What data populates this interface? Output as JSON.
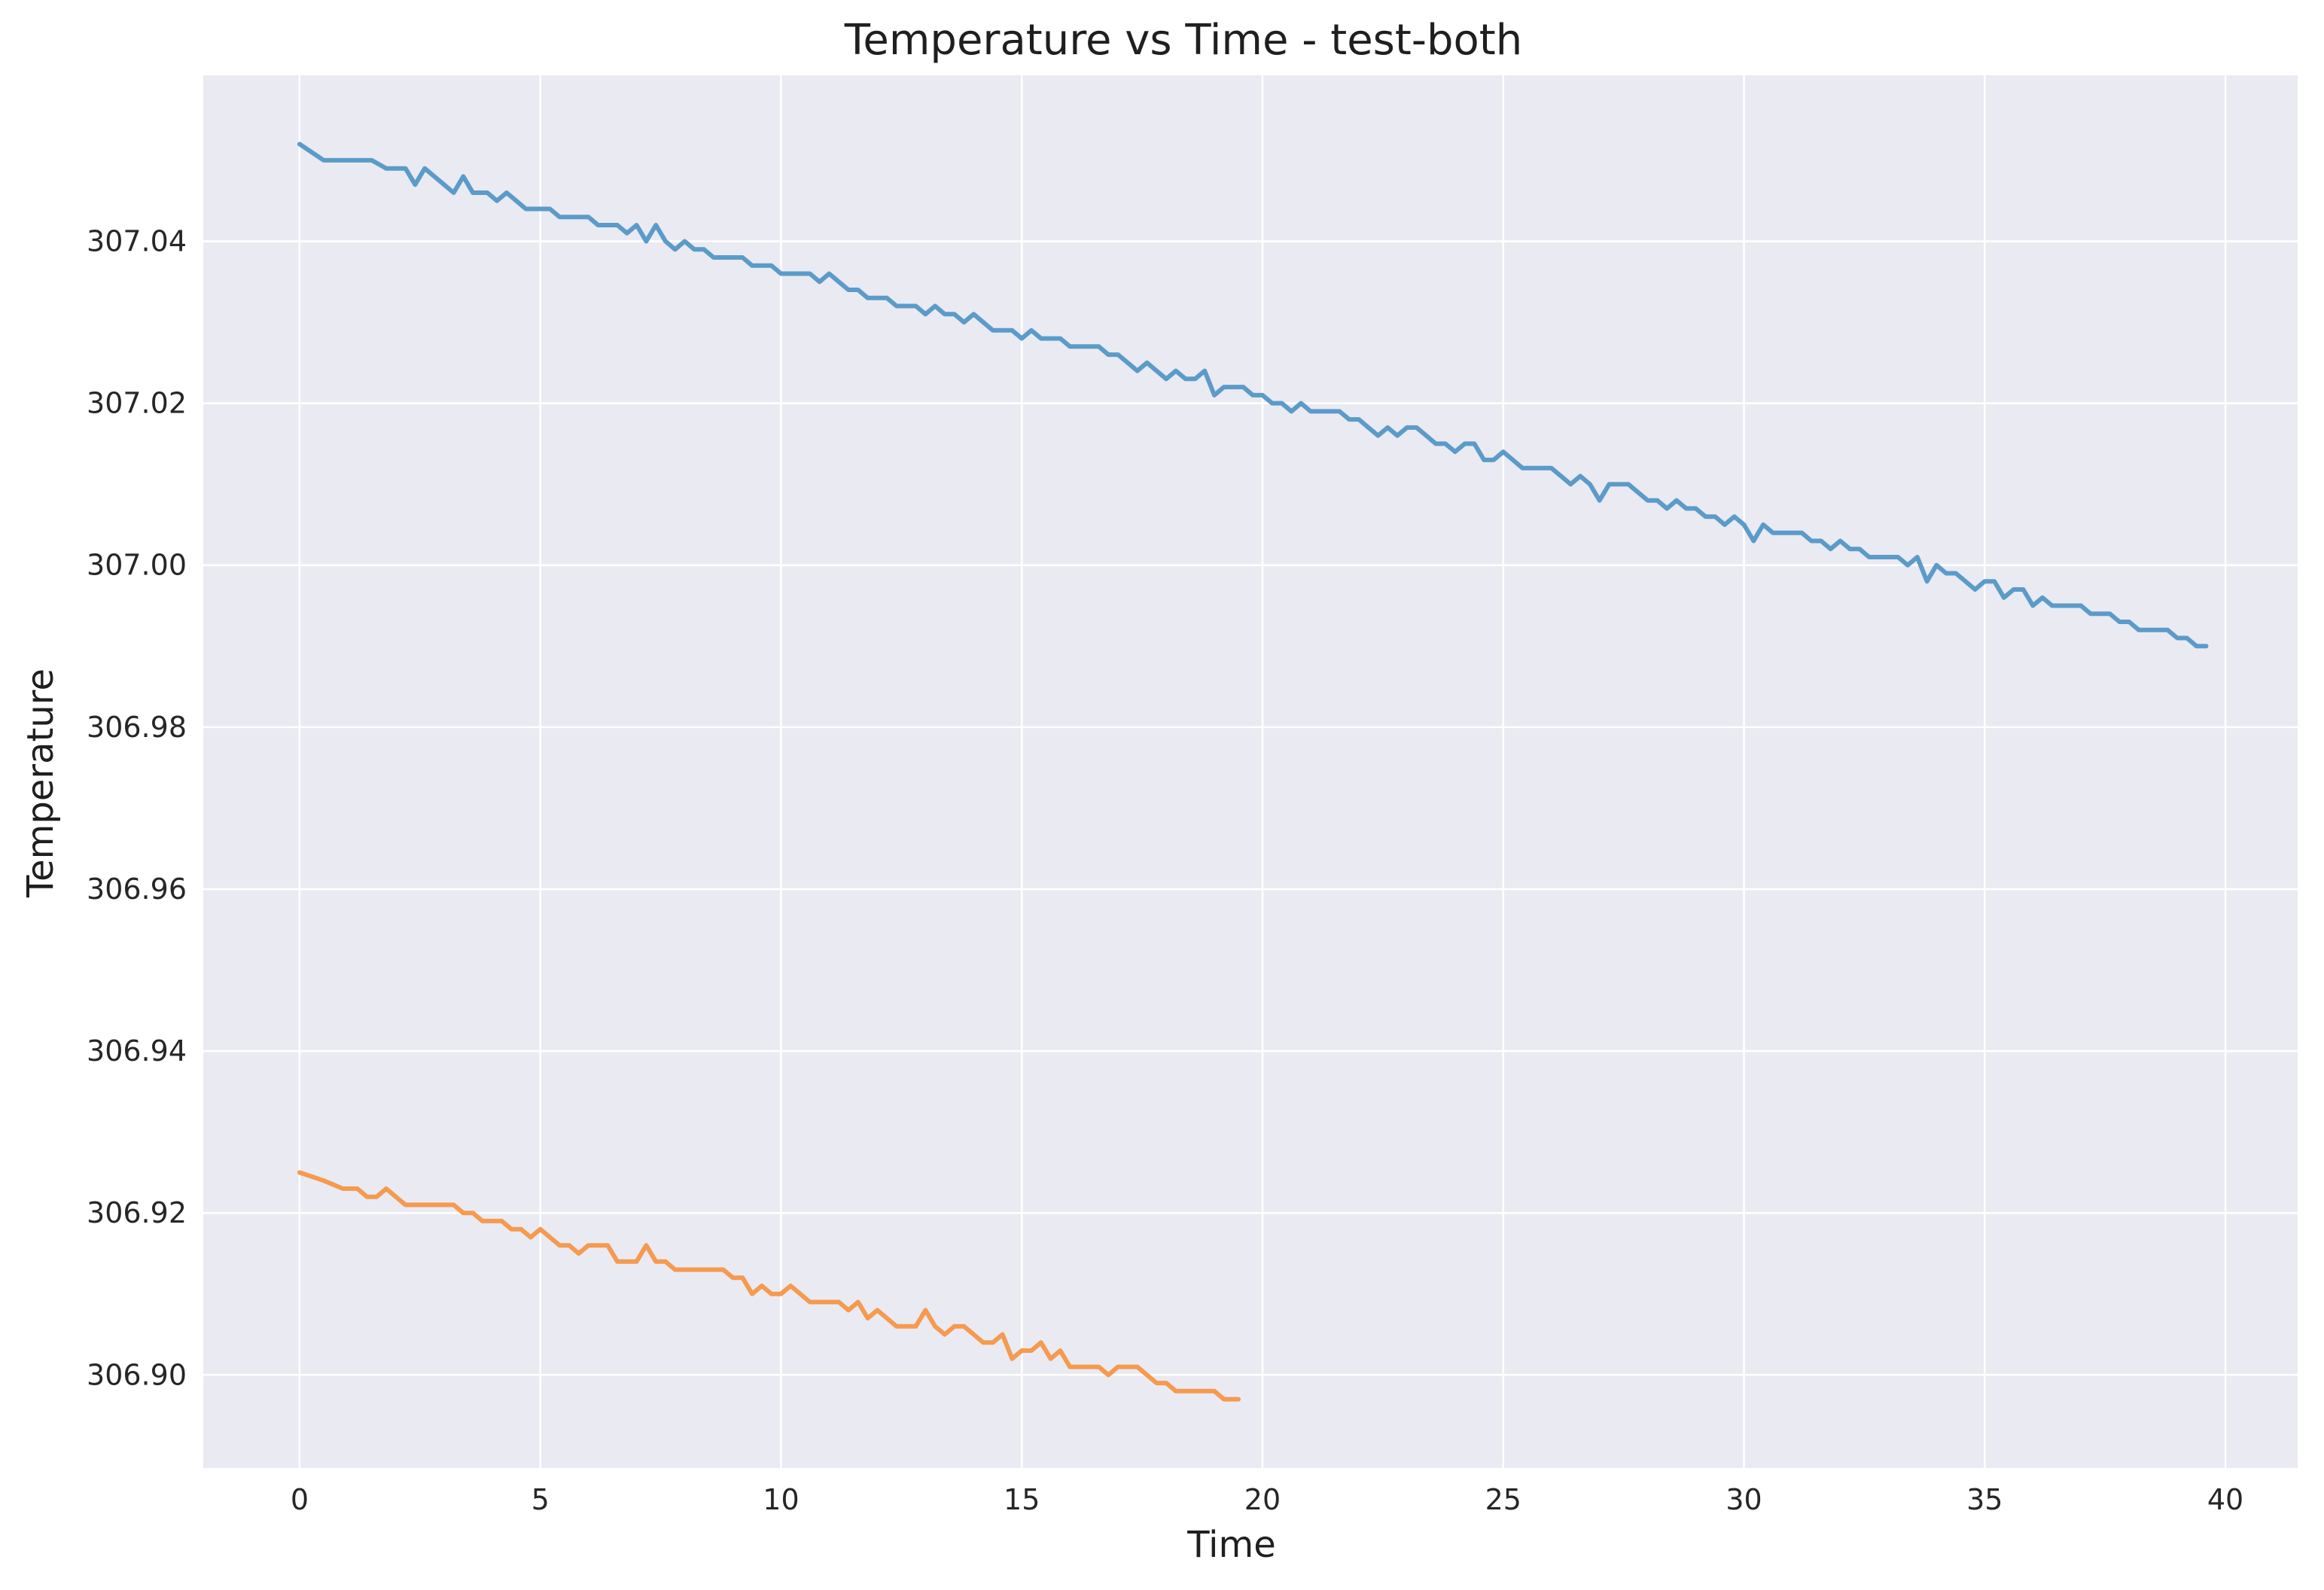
{
  "chart_data": {
    "type": "line",
    "title": "Temperature vs Time - test-both",
    "xlabel": "Time",
    "ylabel": "Temperature",
    "xlim": [
      -2,
      41.5
    ],
    "ylim": [
      306.8885,
      307.0605
    ],
    "xticks": [
      0,
      5,
      10,
      15,
      20,
      25,
      30,
      35,
      40
    ],
    "xtick_labels": [
      "0",
      "5",
      "10",
      "15",
      "20",
      "25",
      "30",
      "35",
      "40"
    ],
    "yticks": [
      306.9,
      306.92,
      306.94,
      306.96,
      306.98,
      307.0,
      307.02,
      307.04
    ],
    "ytick_labels": [
      "306.90",
      "306.92",
      "306.94",
      "306.96",
      "306.98",
      "307.00",
      "307.02",
      "307.04"
    ],
    "grid": true,
    "background": "#eaeaf2",
    "series": [
      {
        "color": "#5b9bc9",
        "points": [
          [
            0.0,
            307.052
          ],
          [
            0.5,
            307.05
          ],
          [
            1.0,
            307.05
          ],
          [
            1.5,
            307.05
          ],
          [
            1.8,
            307.049
          ],
          [
            2.0,
            307.049
          ],
          [
            2.2,
            307.049
          ],
          [
            2.4,
            307.047
          ],
          [
            2.6,
            307.049
          ],
          [
            3.0,
            307.047
          ],
          [
            3.2,
            307.046
          ],
          [
            3.4,
            307.048
          ],
          [
            3.6,
            307.046
          ],
          [
            3.9,
            307.046
          ],
          [
            4.1,
            307.045
          ],
          [
            4.3,
            307.046
          ],
          [
            4.5,
            307.045
          ],
          [
            4.7,
            307.044
          ],
          [
            5.0,
            307.044
          ],
          [
            5.2,
            307.044
          ],
          [
            5.4,
            307.043
          ],
          [
            6.0,
            307.043
          ],
          [
            6.2,
            307.042
          ],
          [
            6.6,
            307.042
          ],
          [
            6.8,
            307.041
          ],
          [
            7.0,
            307.042
          ],
          [
            7.2,
            307.04
          ],
          [
            7.4,
            307.042
          ],
          [
            7.6,
            307.04
          ],
          [
            7.8,
            307.039
          ],
          [
            8.0,
            307.04
          ],
          [
            8.2,
            307.039
          ],
          [
            8.4,
            307.039
          ],
          [
            8.6,
            307.038
          ],
          [
            9.2,
            307.038
          ],
          [
            9.4,
            307.037
          ],
          [
            9.8,
            307.037
          ],
          [
            10.0,
            307.036
          ],
          [
            10.6,
            307.036
          ],
          [
            10.8,
            307.035
          ],
          [
            11.0,
            307.036
          ],
          [
            11.2,
            307.035
          ],
          [
            11.4,
            307.034
          ],
          [
            11.6,
            307.034
          ],
          [
            11.8,
            307.033
          ],
          [
            12.2,
            307.033
          ],
          [
            12.4,
            307.032
          ],
          [
            12.8,
            307.032
          ],
          [
            13.0,
            307.031
          ],
          [
            13.2,
            307.032
          ],
          [
            13.4,
            307.031
          ],
          [
            13.6,
            307.031
          ],
          [
            13.8,
            307.03
          ],
          [
            14.0,
            307.031
          ],
          [
            14.2,
            307.03
          ],
          [
            14.4,
            307.029
          ],
          [
            14.8,
            307.029
          ],
          [
            15.0,
            307.028
          ],
          [
            15.2,
            307.029
          ],
          [
            15.4,
            307.028
          ],
          [
            15.8,
            307.028
          ],
          [
            16.0,
            307.027
          ],
          [
            16.6,
            307.027
          ],
          [
            16.8,
            307.026
          ],
          [
            17.0,
            307.026
          ],
          [
            17.2,
            307.025
          ],
          [
            17.4,
            307.024
          ],
          [
            17.6,
            307.025
          ],
          [
            17.8,
            307.024
          ],
          [
            18.0,
            307.023
          ],
          [
            18.2,
            307.024
          ],
          [
            18.4,
            307.023
          ],
          [
            18.6,
            307.023
          ],
          [
            18.8,
            307.024
          ],
          [
            19.0,
            307.021
          ],
          [
            19.2,
            307.022
          ],
          [
            19.6,
            307.022
          ],
          [
            19.8,
            307.021
          ],
          [
            20.0,
            307.021
          ],
          [
            20.2,
            307.02
          ],
          [
            20.4,
            307.02
          ],
          [
            20.6,
            307.019
          ],
          [
            20.8,
            307.02
          ],
          [
            21.0,
            307.019
          ],
          [
            21.6,
            307.019
          ],
          [
            21.8,
            307.018
          ],
          [
            22.0,
            307.018
          ],
          [
            22.2,
            307.017
          ],
          [
            22.4,
            307.016
          ],
          [
            22.6,
            307.017
          ],
          [
            22.8,
            307.016
          ],
          [
            23.0,
            307.017
          ],
          [
            23.2,
            307.017
          ],
          [
            23.4,
            307.016
          ],
          [
            23.6,
            307.015
          ],
          [
            23.8,
            307.015
          ],
          [
            24.0,
            307.014
          ],
          [
            24.2,
            307.015
          ],
          [
            24.4,
            307.015
          ],
          [
            24.6,
            307.013
          ],
          [
            24.8,
            307.013
          ],
          [
            25.0,
            307.014
          ],
          [
            25.2,
            307.013
          ],
          [
            25.4,
            307.012
          ],
          [
            26.0,
            307.012
          ],
          [
            26.2,
            307.011
          ],
          [
            26.4,
            307.01
          ],
          [
            26.6,
            307.011
          ],
          [
            26.8,
            307.01
          ],
          [
            27.0,
            307.008
          ],
          [
            27.2,
            307.01
          ],
          [
            27.6,
            307.01
          ],
          [
            27.8,
            307.009
          ],
          [
            28.0,
            307.008
          ],
          [
            28.2,
            307.008
          ],
          [
            28.4,
            307.007
          ],
          [
            28.6,
            307.008
          ],
          [
            28.8,
            307.007
          ],
          [
            29.0,
            307.007
          ],
          [
            29.2,
            307.006
          ],
          [
            29.4,
            307.006
          ],
          [
            29.6,
            307.005
          ],
          [
            29.8,
            307.006
          ],
          [
            30.0,
            307.005
          ],
          [
            30.2,
            307.003
          ],
          [
            30.4,
            307.005
          ],
          [
            30.6,
            307.004
          ],
          [
            31.2,
            307.004
          ],
          [
            31.4,
            307.003
          ],
          [
            31.6,
            307.003
          ],
          [
            31.8,
            307.002
          ],
          [
            32.0,
            307.003
          ],
          [
            32.2,
            307.002
          ],
          [
            32.4,
            307.002
          ],
          [
            32.6,
            307.001
          ],
          [
            33.2,
            307.001
          ],
          [
            33.4,
            307.0
          ],
          [
            33.6,
            307.001
          ],
          [
            33.8,
            306.998
          ],
          [
            34.0,
            307.0
          ],
          [
            34.2,
            306.999
          ],
          [
            34.4,
            306.999
          ],
          [
            34.6,
            306.998
          ],
          [
            34.8,
            306.997
          ],
          [
            35.0,
            306.998
          ],
          [
            35.2,
            306.998
          ],
          [
            35.4,
            306.996
          ],
          [
            35.6,
            306.997
          ],
          [
            35.8,
            306.997
          ],
          [
            36.0,
            306.995
          ],
          [
            36.2,
            306.996
          ],
          [
            36.4,
            306.995
          ],
          [
            37.0,
            306.995
          ],
          [
            37.2,
            306.994
          ],
          [
            37.6,
            306.994
          ],
          [
            37.8,
            306.993
          ],
          [
            38.0,
            306.993
          ],
          [
            38.2,
            306.992
          ],
          [
            38.8,
            306.992
          ],
          [
            39.0,
            306.991
          ],
          [
            39.2,
            306.991
          ],
          [
            39.4,
            306.99
          ],
          [
            39.6,
            306.99
          ]
        ]
      },
      {
        "color": "#f59a4f",
        "points": [
          [
            0.0,
            306.925
          ],
          [
            0.5,
            306.924
          ],
          [
            0.9,
            306.923
          ],
          [
            1.2,
            306.923
          ],
          [
            1.4,
            306.922
          ],
          [
            1.6,
            306.922
          ],
          [
            1.8,
            306.923
          ],
          [
            2.0,
            306.922
          ],
          [
            2.2,
            306.921
          ],
          [
            3.2,
            306.921
          ],
          [
            3.4,
            306.92
          ],
          [
            3.6,
            306.92
          ],
          [
            3.8,
            306.919
          ],
          [
            4.2,
            306.919
          ],
          [
            4.4,
            306.918
          ],
          [
            4.6,
            306.918
          ],
          [
            4.8,
            306.917
          ],
          [
            5.0,
            306.918
          ],
          [
            5.2,
            306.917
          ],
          [
            5.4,
            306.916
          ],
          [
            5.6,
            306.916
          ],
          [
            5.8,
            306.915
          ],
          [
            6.0,
            306.916
          ],
          [
            6.4,
            306.916
          ],
          [
            6.6,
            306.914
          ],
          [
            7.0,
            306.914
          ],
          [
            7.2,
            306.916
          ],
          [
            7.4,
            306.914
          ],
          [
            7.6,
            306.914
          ],
          [
            7.8,
            306.913
          ],
          [
            8.8,
            306.913
          ],
          [
            9.0,
            306.912
          ],
          [
            9.2,
            306.912
          ],
          [
            9.4,
            306.91
          ],
          [
            9.6,
            306.911
          ],
          [
            9.8,
            306.91
          ],
          [
            10.0,
            306.91
          ],
          [
            10.2,
            306.911
          ],
          [
            10.4,
            306.91
          ],
          [
            10.6,
            306.909
          ],
          [
            11.2,
            306.909
          ],
          [
            11.4,
            306.908
          ],
          [
            11.6,
            306.909
          ],
          [
            11.8,
            306.907
          ],
          [
            12.0,
            306.908
          ],
          [
            12.2,
            306.907
          ],
          [
            12.4,
            306.906
          ],
          [
            12.8,
            306.906
          ],
          [
            13.0,
            306.908
          ],
          [
            13.2,
            306.906
          ],
          [
            13.4,
            306.905
          ],
          [
            13.6,
            306.906
          ],
          [
            13.8,
            306.906
          ],
          [
            14.0,
            306.905
          ],
          [
            14.2,
            306.904
          ],
          [
            14.4,
            306.904
          ],
          [
            14.6,
            306.905
          ],
          [
            14.8,
            306.902
          ],
          [
            15.0,
            306.903
          ],
          [
            15.2,
            306.903
          ],
          [
            15.4,
            306.904
          ],
          [
            15.6,
            306.902
          ],
          [
            15.8,
            306.903
          ],
          [
            16.0,
            306.901
          ],
          [
            16.6,
            306.901
          ],
          [
            16.8,
            306.9
          ],
          [
            17.0,
            306.901
          ],
          [
            17.4,
            306.901
          ],
          [
            17.6,
            306.9
          ],
          [
            17.8,
            306.899
          ],
          [
            18.0,
            306.899
          ],
          [
            18.2,
            306.898
          ],
          [
            19.0,
            306.898
          ],
          [
            19.2,
            306.897
          ],
          [
            19.5,
            306.897
          ]
        ]
      }
    ]
  }
}
